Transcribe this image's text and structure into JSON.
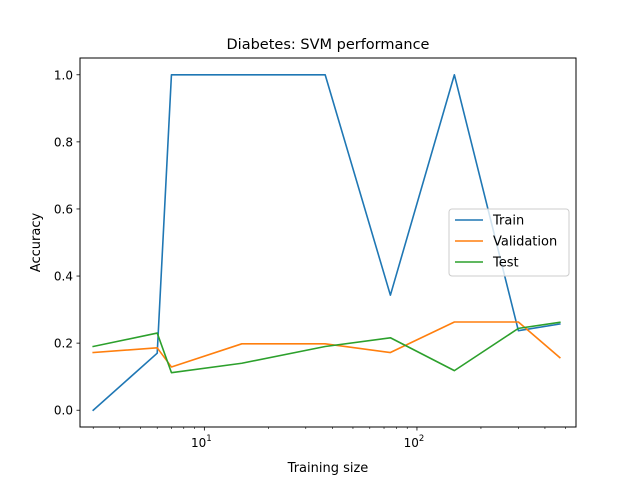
{
  "chart_data": {
    "type": "line",
    "title": "Diabetes: SVM performance",
    "xlabel": "Training size",
    "ylabel": "Accuracy",
    "x_scale": "log",
    "xlim": [
      2.6,
      560
    ],
    "ylim": [
      -0.05,
      1.05
    ],
    "x_ticks": [
      {
        "value": 10,
        "base": "10",
        "exp": "1"
      },
      {
        "value": 100,
        "base": "10",
        "exp": "2"
      }
    ],
    "y_ticks": [
      {
        "value": 0.0,
        "label": "0.0"
      },
      {
        "value": 0.2,
        "label": "0.2"
      },
      {
        "value": 0.4,
        "label": "0.4"
      },
      {
        "value": 0.6,
        "label": "0.6"
      },
      {
        "value": 0.8,
        "label": "0.8"
      },
      {
        "value": 1.0,
        "label": "1.0"
      }
    ],
    "x": [
      3,
      6,
      7,
      15,
      37,
      75,
      150,
      300,
      470
    ],
    "series": [
      {
        "name": "Train",
        "color": "#1f77b4",
        "values": [
          0.0,
          0.17,
          1.0,
          1.0,
          1.0,
          0.343,
          1.0,
          0.237,
          0.257
        ]
      },
      {
        "name": "Validation",
        "color": "#ff7f0e",
        "values": [
          0.172,
          0.186,
          0.129,
          0.198,
          0.198,
          0.172,
          0.263,
          0.263,
          0.157
        ]
      },
      {
        "name": "Test",
        "color": "#2ca02c",
        "values": [
          0.19,
          0.23,
          0.112,
          0.14,
          0.19,
          0.216,
          0.118,
          0.244,
          0.262
        ]
      }
    ],
    "grid": false,
    "legend_position": "center-right"
  }
}
